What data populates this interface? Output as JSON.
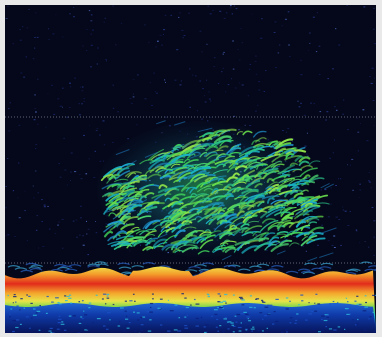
{
  "image": {
    "description_icon": "echogram-icon",
    "palette": {
      "background": "#05081a",
      "frame": "#e9e9e9",
      "gridline": "#6f7a8a",
      "seabed_red": "#e0261b",
      "seabed_orange": "#f4a22a",
      "seabed_yellow": "#f8e34a",
      "seabed_green": "#4fd24b",
      "seabed_cyan": "#16b6d8",
      "seabed_blue": "#1f58c9",
      "deep_blue": "#0b2c9a",
      "noise": "#3b5bd1"
    }
  }
}
